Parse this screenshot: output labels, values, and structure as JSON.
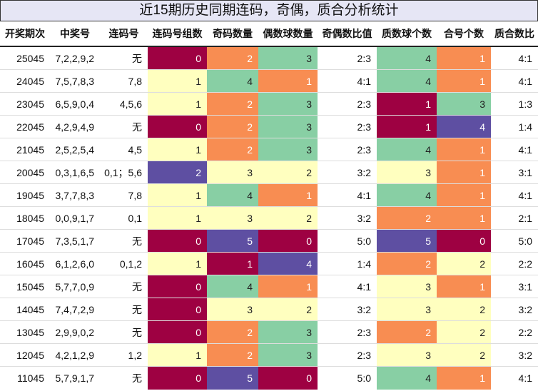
{
  "title": "近15期历史同期连码，奇偶，质合分析统计",
  "table": {
    "headers": [
      "开奖期次",
      "中奖号",
      "连码号",
      "连码号组数",
      "奇码数量",
      "偶数球数量",
      "奇偶数比值",
      "质数球个数",
      "合号个数",
      "质合数比"
    ],
    "cell_colors": [
      "#9e0142",
      "#f88d52",
      "#ffffbf",
      "#88cfa4",
      "#5e4fa2"
    ],
    "rows": [
      [
        "25045",
        "7,2,2,9,2",
        "无",
        0,
        2,
        3,
        "2:3",
        4,
        1,
        "4:1"
      ],
      [
        "24045",
        "7,5,7,8,3",
        "7,8",
        1,
        4,
        1,
        "4:1",
        4,
        1,
        "4:1"
      ],
      [
        "23045",
        "6,5,9,0,4",
        "4,5,6",
        1,
        2,
        3,
        "2:3",
        1,
        3,
        "1:3"
      ],
      [
        "22045",
        "4,2,9,4,9",
        "无",
        0,
        2,
        3,
        "2:3",
        1,
        4,
        "1:4"
      ],
      [
        "21045",
        "2,5,2,5,4",
        "4,5",
        1,
        2,
        3,
        "2:3",
        4,
        1,
        "4:1"
      ],
      [
        "20045",
        "0,3,1,6,5",
        "0,1；5,6",
        2,
        3,
        2,
        "3:2",
        3,
        1,
        "3:1"
      ],
      [
        "19045",
        "3,7,7,8,3",
        "7,8",
        1,
        4,
        1,
        "4:1",
        4,
        1,
        "4:1"
      ],
      [
        "18045",
        "0,0,9,1,7",
        "0,1",
        1,
        3,
        2,
        "3:2",
        2,
        1,
        "2:1"
      ],
      [
        "17045",
        "7,3,5,1,7",
        "无",
        0,
        5,
        0,
        "5:0",
        5,
        0,
        "5:0"
      ],
      [
        "16045",
        "6,1,2,6,0",
        "0,1,2",
        1,
        1,
        4,
        "1:4",
        2,
        2,
        "2:2"
      ],
      [
        "15045",
        "5,7,7,0,9",
        "无",
        0,
        4,
        1,
        "4:1",
        3,
        1,
        "3:1"
      ],
      [
        "14045",
        "7,4,7,2,9",
        "无",
        0,
        3,
        2,
        "3:2",
        3,
        2,
        "3:2"
      ],
      [
        "13045",
        "2,9,9,0,2",
        "无",
        0,
        2,
        3,
        "2:3",
        2,
        2,
        "2:2"
      ],
      [
        "12045",
        "4,2,1,2,9",
        "1,2",
        1,
        2,
        3,
        "2:3",
        3,
        2,
        "3:2"
      ],
      [
        "11045",
        "5,7,9,1,7",
        "无",
        0,
        5,
        0,
        "5:0",
        4,
        1,
        "4:1"
      ]
    ]
  }
}
